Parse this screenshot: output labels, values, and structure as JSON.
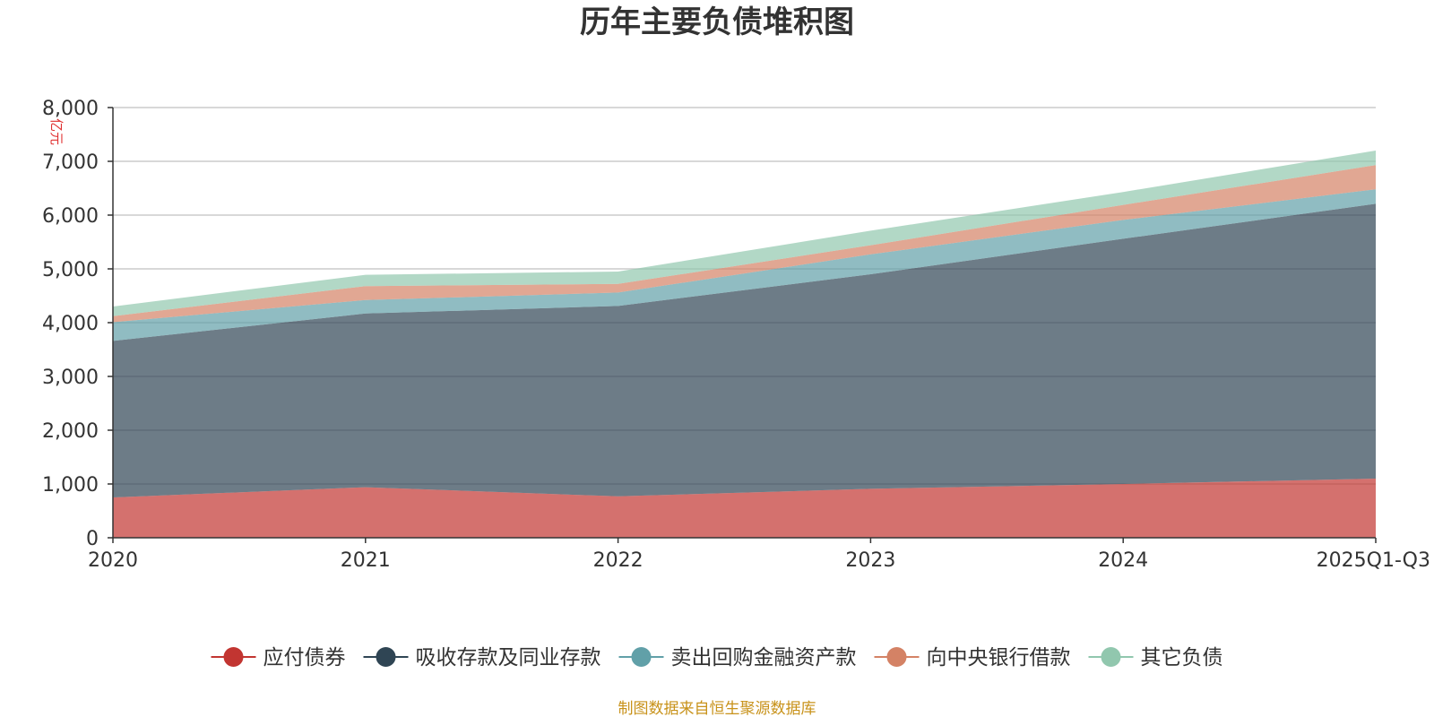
{
  "chart_data": {
    "type": "area",
    "stacked": true,
    "title": "历年主要负债堆积图",
    "unit_label": "亿元",
    "x": [
      "2020",
      "2021",
      "2022",
      "2023",
      "2024",
      "2025Q1-Q3"
    ],
    "ylim": [
      0,
      8000
    ],
    "yticks": [
      0,
      1000,
      2000,
      3000,
      4000,
      5000,
      6000,
      7000,
      8000
    ],
    "ytick_labels": [
      "0",
      "1,000",
      "2,000",
      "3,000",
      "4,000",
      "5,000",
      "6,000",
      "7,000",
      "8,000"
    ],
    "grid": true,
    "legend_position": "bottom",
    "series": [
      {
        "name": "应付债券",
        "color": "#c23531",
        "values": [
          750,
          940,
          770,
          910,
          1000,
          1100
        ]
      },
      {
        "name": "吸收存款及同业存款",
        "color": "#2f4554",
        "values": [
          2910,
          3230,
          3540,
          3990,
          4560,
          5110
        ]
      },
      {
        "name": "卖出回购金融资产款",
        "color": "#61a0a8",
        "values": [
          350,
          250,
          250,
          370,
          350,
          270
        ]
      },
      {
        "name": "向中央银行借款",
        "color": "#d48265",
        "values": [
          110,
          260,
          160,
          170,
          280,
          450
        ]
      },
      {
        "name": "其它负债",
        "color": "#91c7ae",
        "values": [
          180,
          210,
          230,
          270,
          240,
          270
        ]
      }
    ]
  },
  "source_note": "制图数据来自恒生聚源数据库"
}
